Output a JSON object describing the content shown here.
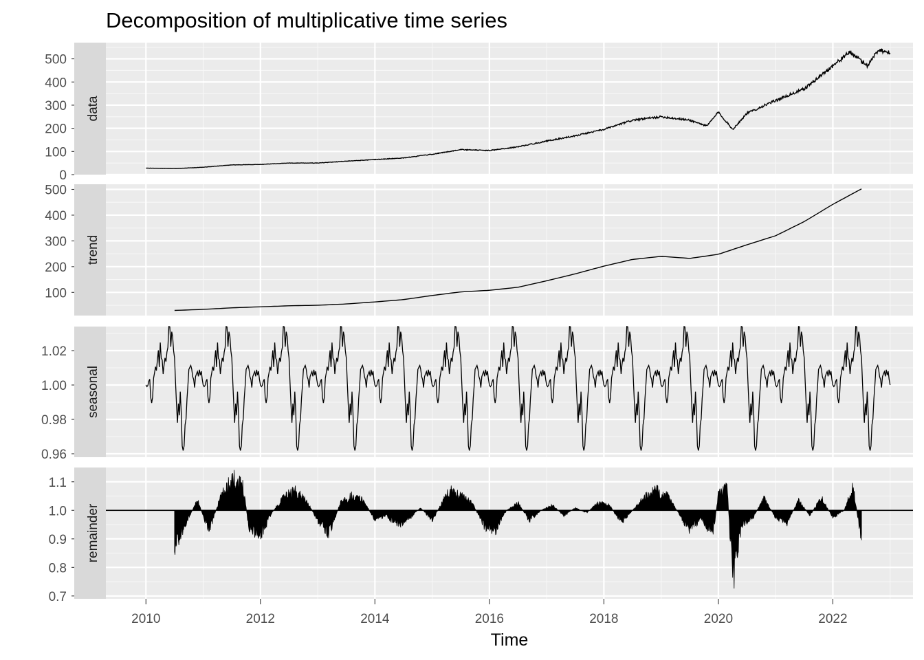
{
  "title": "Decomposition of multiplicative time series",
  "chart_data": {
    "type": "line",
    "title": "Decomposition of multiplicative time series",
    "xlabel": "Time",
    "xlim": [
      2009.3,
      2023.4
    ],
    "x_ticks": [
      2010,
      2012,
      2014,
      2016,
      2018,
      2020,
      2022
    ],
    "grid": true,
    "legend": "none",
    "panels": [
      {
        "name": "data",
        "ylim": [
          0,
          570
        ],
        "y_ticks": [
          0,
          100,
          200,
          300,
          400,
          500
        ],
        "y_tick_labels": [
          "0",
          "100",
          "200",
          "300",
          "400",
          "500"
        ],
        "points": [
          [
            2010.0,
            28
          ],
          [
            2010.5,
            26
          ],
          [
            2011.0,
            32
          ],
          [
            2011.5,
            42
          ],
          [
            2012.0,
            44
          ],
          [
            2012.5,
            50
          ],
          [
            2013.0,
            50
          ],
          [
            2013.5,
            58
          ],
          [
            2014.0,
            65
          ],
          [
            2014.5,
            72
          ],
          [
            2015.0,
            88
          ],
          [
            2015.5,
            108
          ],
          [
            2016.0,
            104
          ],
          [
            2016.5,
            120
          ],
          [
            2017.0,
            145
          ],
          [
            2017.5,
            168
          ],
          [
            2018.0,
            195
          ],
          [
            2018.5,
            235
          ],
          [
            2019.0,
            250
          ],
          [
            2019.5,
            235
          ],
          [
            2019.8,
            210
          ],
          [
            2020.0,
            270
          ],
          [
            2020.25,
            195
          ],
          [
            2020.5,
            265
          ],
          [
            2021.0,
            320
          ],
          [
            2021.5,
            370
          ],
          [
            2022.0,
            470
          ],
          [
            2022.3,
            530
          ],
          [
            2022.6,
            470
          ],
          [
            2022.8,
            540
          ],
          [
            2023.0,
            525
          ]
        ]
      },
      {
        "name": "trend",
        "ylim": [
          10,
          520
        ],
        "y_ticks": [
          100,
          200,
          300,
          400,
          500
        ],
        "y_tick_labels": [
          "100",
          "200",
          "300",
          "400",
          "500"
        ],
        "points": [
          [
            2010.5,
            30
          ],
          [
            2011.0,
            34
          ],
          [
            2011.5,
            40
          ],
          [
            2012.0,
            44
          ],
          [
            2012.5,
            48
          ],
          [
            2013.0,
            50
          ],
          [
            2013.5,
            55
          ],
          [
            2014.0,
            63
          ],
          [
            2014.5,
            72
          ],
          [
            2015.0,
            88
          ],
          [
            2015.5,
            102
          ],
          [
            2016.0,
            108
          ],
          [
            2016.5,
            120
          ],
          [
            2017.0,
            145
          ],
          [
            2017.5,
            172
          ],
          [
            2018.0,
            202
          ],
          [
            2018.5,
            228
          ],
          [
            2019.0,
            240
          ],
          [
            2019.5,
            232
          ],
          [
            2020.0,
            248
          ],
          [
            2020.5,
            285
          ],
          [
            2021.0,
            320
          ],
          [
            2021.5,
            375
          ],
          [
            2022.0,
            442
          ],
          [
            2022.5,
            502
          ]
        ]
      },
      {
        "name": "seasonal",
        "ylim": [
          0.958,
          1.034
        ],
        "y_ticks": [
          0.96,
          0.98,
          1.0,
          1.02
        ],
        "y_tick_labels": [
          "0.96",
          "0.98",
          "1.00",
          "1.02"
        ],
        "period_years": 1,
        "cycle_start": 2010.0,
        "cycle_end": 2023.0,
        "cycle_shape": [
          [
            0.0,
            1.0
          ],
          [
            0.05,
            1.008
          ],
          [
            0.1,
            0.985
          ],
          [
            0.15,
            1.005
          ],
          [
            0.2,
            1.01
          ],
          [
            0.25,
            1.018
          ],
          [
            0.3,
            1.012
          ],
          [
            0.35,
            1.02
          ],
          [
            0.4,
            1.028
          ],
          [
            0.45,
            1.031
          ],
          [
            0.5,
            1.012
          ],
          [
            0.55,
            0.985
          ],
          [
            0.6,
            0.99
          ],
          [
            0.65,
            0.961
          ],
          [
            0.7,
            0.985
          ],
          [
            0.75,
            1.005
          ],
          [
            0.8,
            1.01
          ],
          [
            0.85,
            1.003
          ],
          [
            0.9,
            1.012
          ],
          [
            0.95,
            1.006
          ],
          [
            1.0,
            1.0
          ]
        ]
      },
      {
        "name": "remainder",
        "ylim": [
          0.69,
          1.15
        ],
        "y_ticks": [
          0.7,
          0.8,
          0.9,
          1.0,
          1.1
        ],
        "y_tick_labels": [
          "0.7",
          "0.8",
          "0.9",
          "1.0",
          "1.1"
        ],
        "baseline": 1.0,
        "points": [
          [
            2010.5,
            0.86
          ],
          [
            2010.7,
            0.95
          ],
          [
            2010.9,
            1.04
          ],
          [
            2011.1,
            0.92
          ],
          [
            2011.3,
            1.05
          ],
          [
            2011.5,
            1.13
          ],
          [
            2011.7,
            1.1
          ],
          [
            2011.8,
            0.92
          ],
          [
            2012.0,
            0.9
          ],
          [
            2012.2,
            0.99
          ],
          [
            2012.4,
            1.05
          ],
          [
            2012.6,
            1.08
          ],
          [
            2012.8,
            1.04
          ],
          [
            2013.0,
            0.96
          ],
          [
            2013.2,
            0.91
          ],
          [
            2013.4,
            1.03
          ],
          [
            2013.6,
            1.06
          ],
          [
            2013.8,
            1.04
          ],
          [
            2014.0,
            0.96
          ],
          [
            2014.2,
            0.98
          ],
          [
            2014.4,
            0.94
          ],
          [
            2014.6,
            0.97
          ],
          [
            2014.8,
            1.01
          ],
          [
            2015.0,
            0.96
          ],
          [
            2015.3,
            1.08
          ],
          [
            2015.5,
            1.06
          ],
          [
            2015.7,
            1.03
          ],
          [
            2015.9,
            0.94
          ],
          [
            2016.1,
            0.92
          ],
          [
            2016.3,
            1.0
          ],
          [
            2016.5,
            1.03
          ],
          [
            2016.7,
            0.96
          ],
          [
            2016.9,
            1.0
          ],
          [
            2017.1,
            1.02
          ],
          [
            2017.3,
            0.98
          ],
          [
            2017.5,
            1.01
          ],
          [
            2017.7,
            0.99
          ],
          [
            2017.9,
            1.03
          ],
          [
            2018.1,
            1.02
          ],
          [
            2018.3,
            0.95
          ],
          [
            2018.5,
            1.0
          ],
          [
            2018.7,
            1.05
          ],
          [
            2018.9,
            1.08
          ],
          [
            2019.1,
            1.06
          ],
          [
            2019.3,
            0.99
          ],
          [
            2019.5,
            0.92
          ],
          [
            2019.7,
            0.97
          ],
          [
            2019.9,
            0.9
          ],
          [
            2020.0,
            1.06
          ],
          [
            2020.15,
            1.1
          ],
          [
            2020.25,
            0.72
          ],
          [
            2020.4,
            0.94
          ],
          [
            2020.6,
            0.97
          ],
          [
            2020.8,
            1.05
          ],
          [
            2021.0,
            0.97
          ],
          [
            2021.2,
            0.95
          ],
          [
            2021.4,
            1.04
          ],
          [
            2021.6,
            0.98
          ],
          [
            2021.8,
            1.05
          ],
          [
            2022.0,
            0.97
          ],
          [
            2022.2,
            1.0
          ],
          [
            2022.35,
            1.1
          ],
          [
            2022.5,
            0.88
          ]
        ]
      }
    ]
  }
}
